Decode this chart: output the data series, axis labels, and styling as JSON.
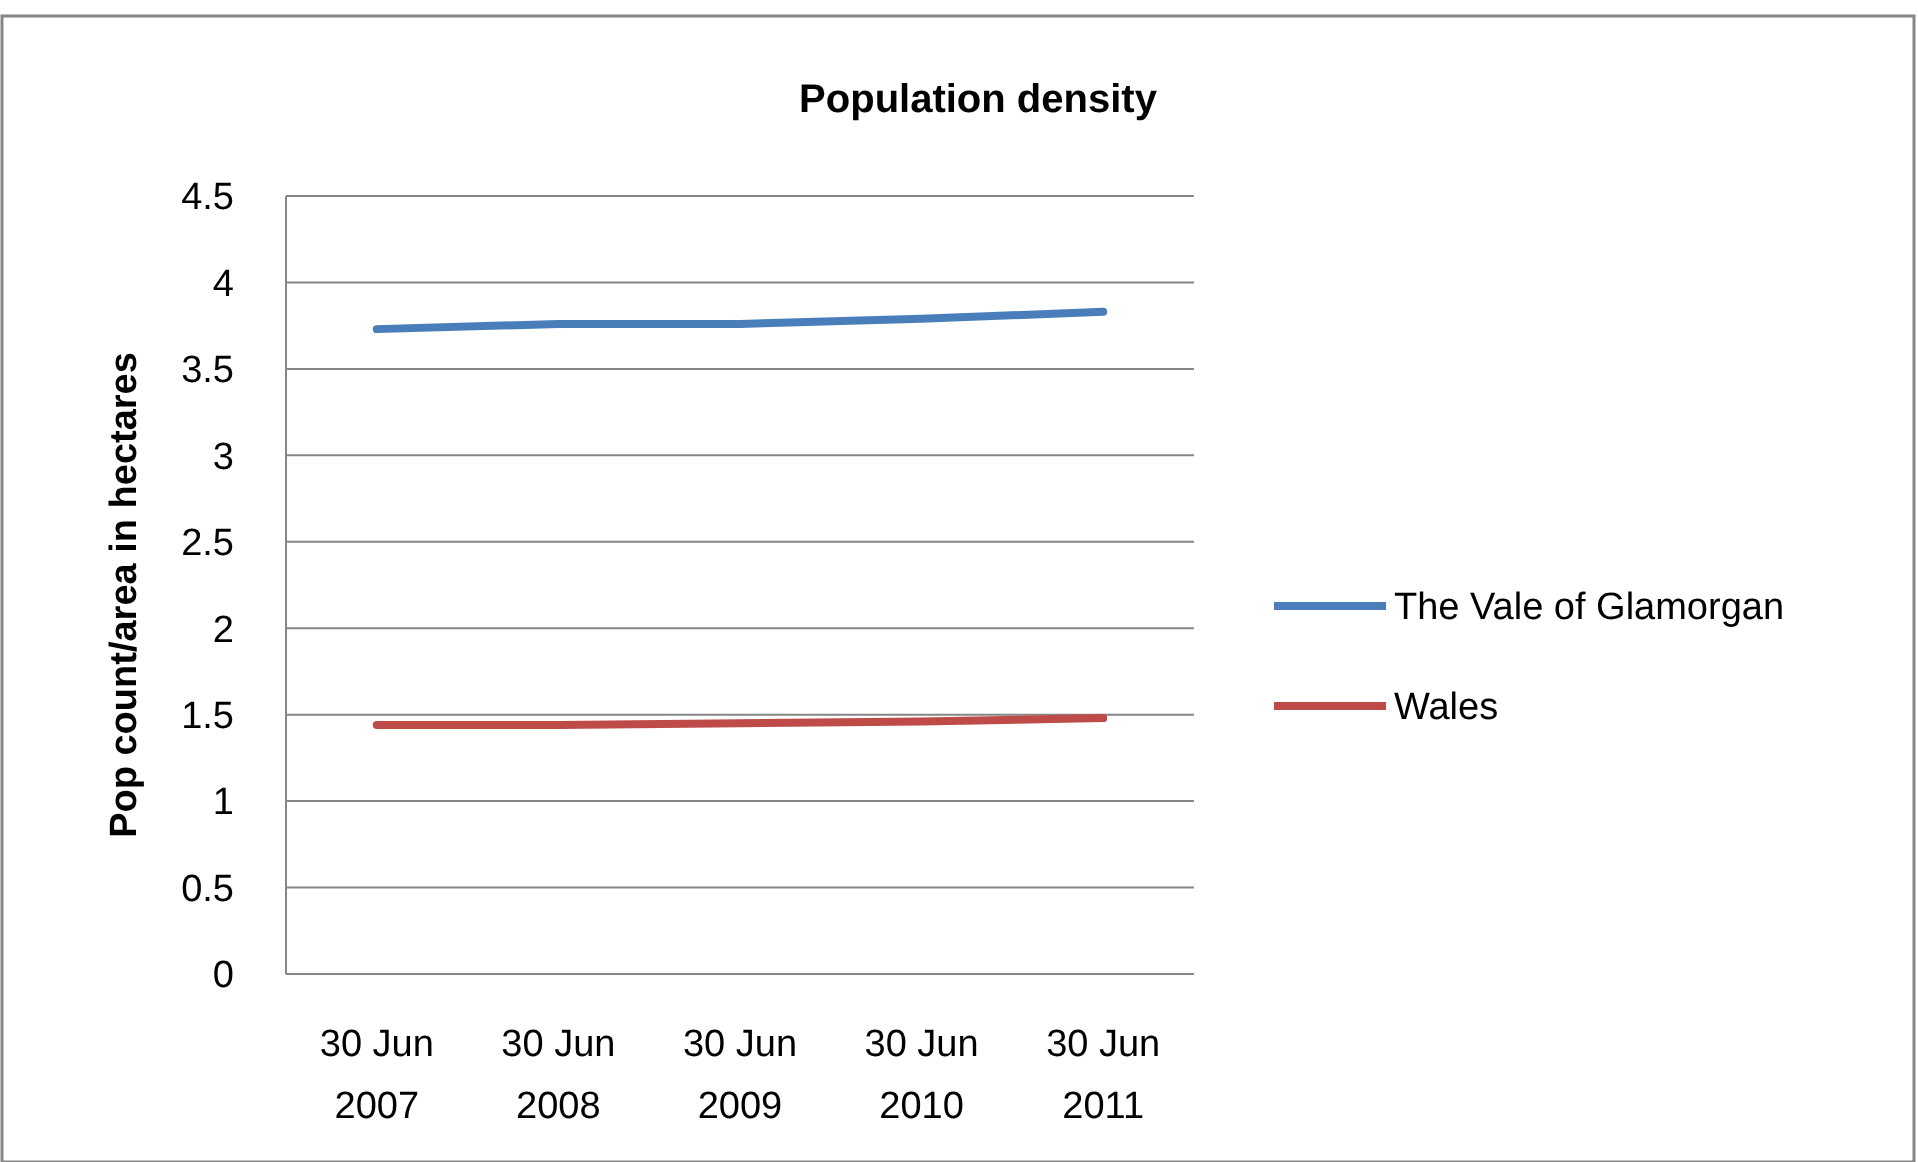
{
  "chart_data": {
    "type": "line",
    "title": "Population density",
    "ylabel": "Pop count/area in hectares",
    "categories": [
      "30 Jun 2007",
      "30 Jun 2008",
      "30 Jun 2009",
      "30 Jun 2010",
      "30 Jun 2011"
    ],
    "series": [
      {
        "name": "The Vale of Glamorgan",
        "color": "#4a7ebb",
        "values": [
          3.73,
          3.76,
          3.76,
          3.79,
          3.83
        ]
      },
      {
        "name": "Wales",
        "color": "#be4b48",
        "values": [
          1.44,
          1.44,
          1.45,
          1.46,
          1.48
        ]
      }
    ],
    "ylim": [
      0,
      4.5
    ],
    "yticks": [
      0,
      {
        "value": 0.5,
        "label": "0.5"
      },
      1,
      {
        "value": 1.5,
        "label": "1.5"
      },
      2,
      {
        "value": 2.5,
        "label": "2.5"
      },
      3,
      {
        "value": 3.5,
        "label": "3.5"
      },
      4,
      {
        "value": 4.5,
        "label": "4.5"
      }
    ],
    "grid": "y",
    "legend": "right",
    "marker": "none",
    "line_style": "solid"
  }
}
